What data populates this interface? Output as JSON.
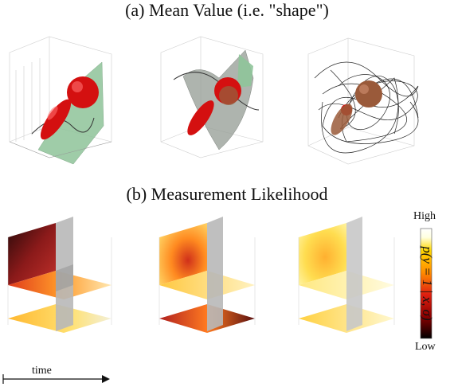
{
  "titles": {
    "mean_value": "(a) Mean Value (i.e. \"shape\")",
    "measurement_likelihood": "(b) Measurement Likelihood"
  },
  "colorbar": {
    "high_label": "High",
    "low_label": "Low",
    "axis_label": "p(y = 1 | x, σ)",
    "colors": [
      "#000000",
      "#8b0000",
      "#e02010",
      "#ff8c00",
      "#ffd700",
      "#ffffe0",
      "#ffffff"
    ]
  },
  "time_axis": {
    "label": "time"
  },
  "colors": {
    "sphere_red": "#e01010",
    "sphere_brown": "#9a5a3a",
    "surface_green": "#8fc49a",
    "surface_gray": "#9aa29a",
    "slice_gray": "#b8b8b8"
  }
}
